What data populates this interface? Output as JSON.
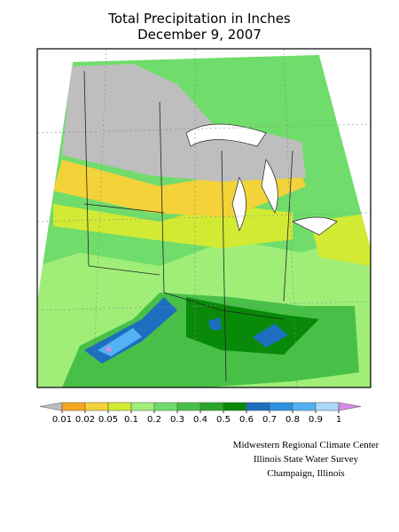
{
  "header": {
    "title": "Total Precipitation in Inches",
    "subtitle": "December 9, 2007"
  },
  "legend": {
    "ticks": [
      0.01,
      0.02,
      0.05,
      0.1,
      0.2,
      0.3,
      0.4,
      0.5,
      0.6,
      0.7,
      0.8,
      0.9,
      1
    ],
    "colors": [
      "#bebebe",
      "#f5a623",
      "#f3d23a",
      "#d2ea34",
      "#a0ee78",
      "#70dc6c",
      "#48c048",
      "#28a828",
      "#088a08",
      "#1e6ec0",
      "#2e90e0",
      "#52b2f2",
      "#aad8f8",
      "#d88ae8"
    ]
  },
  "credits": [
    "Midwestern Regional Climate Center",
    "Illinois State Water Survey",
    "Champaign, Illinois"
  ]
}
